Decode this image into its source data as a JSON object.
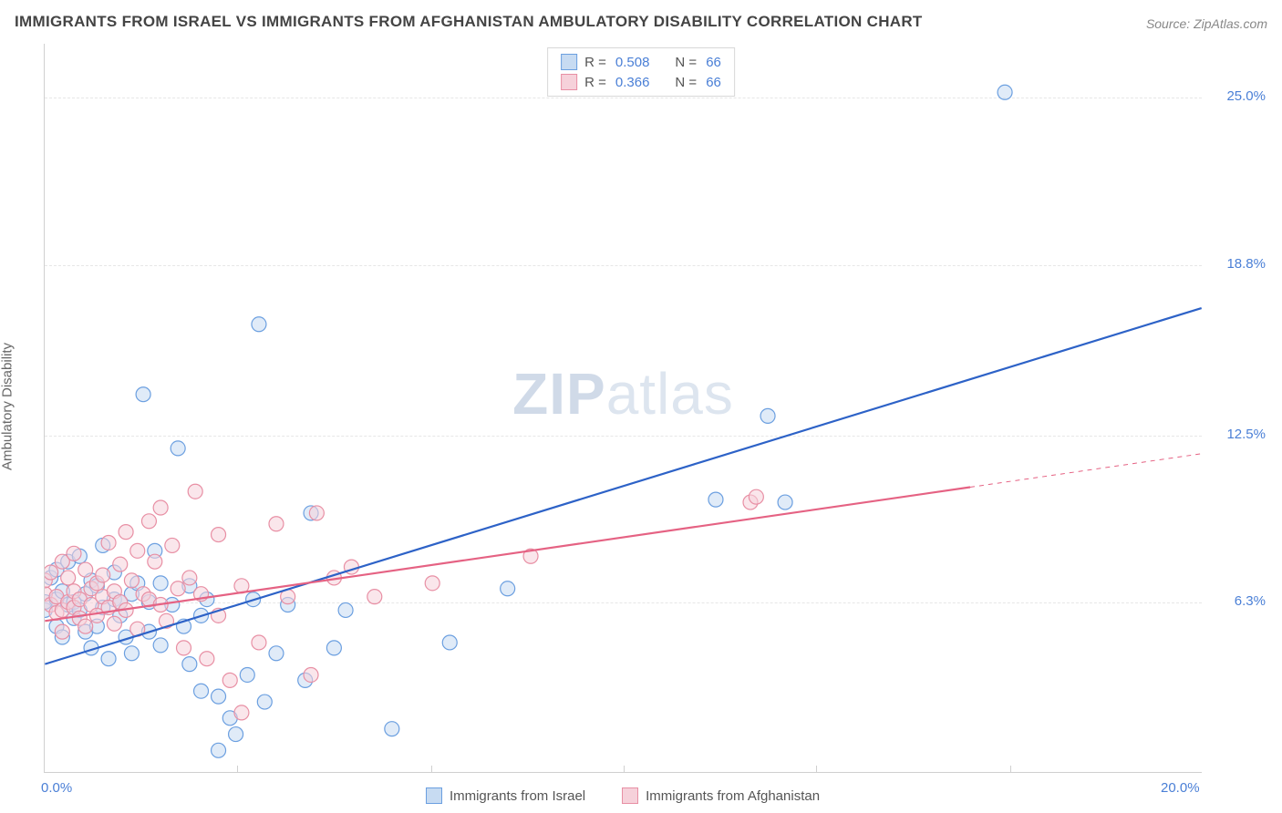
{
  "title": "IMMIGRANTS FROM ISRAEL VS IMMIGRANTS FROM AFGHANISTAN AMBULATORY DISABILITY CORRELATION CHART",
  "source": "Source: ZipAtlas.com",
  "ylabel": "Ambulatory Disability",
  "watermark": {
    "left": "ZIP",
    "right": "atlas"
  },
  "chart": {
    "type": "scatter",
    "xlim": [
      0,
      20
    ],
    "ylim": [
      0,
      27
    ],
    "xticks": [
      0,
      20
    ],
    "xtick_labels": [
      "0.0%",
      "20.0%"
    ],
    "xtick_minor": [
      3.33,
      6.67,
      10,
      13.33,
      16.67
    ],
    "yticks": [
      6.3,
      12.5,
      18.8,
      25.0
    ],
    "ytick_labels": [
      "6.3%",
      "12.5%",
      "18.8%",
      "25.0%"
    ],
    "grid_color": "#e6e6e6",
    "background_color": "#ffffff",
    "axis_color": "#d0d0d0",
    "label_color": "#4a7fd6",
    "marker_radius": 8,
    "marker_opacity": 0.55,
    "line_width": 2.2,
    "series": [
      {
        "name": "Immigrants from Israel",
        "marker_fill": "#c7dbf2",
        "marker_stroke": "#6b9fe0",
        "line_color": "#2d62c7",
        "R": 0.508,
        "N": 66,
        "trend": {
          "x1": 0,
          "y1": 4.0,
          "x2": 20,
          "y2": 17.2,
          "dash_after_x": null
        },
        "points": [
          [
            0.0,
            6.0
          ],
          [
            0.0,
            6.3
          ],
          [
            0.1,
            7.2
          ],
          [
            0.2,
            5.4
          ],
          [
            0.2,
            6.4
          ],
          [
            0.2,
            7.5
          ],
          [
            0.3,
            6.7
          ],
          [
            0.3,
            5.0
          ],
          [
            0.4,
            6.2
          ],
          [
            0.4,
            7.8
          ],
          [
            0.5,
            5.7
          ],
          [
            0.5,
            6.3
          ],
          [
            0.6,
            6.0
          ],
          [
            0.6,
            8.0
          ],
          [
            0.7,
            5.2
          ],
          [
            0.7,
            6.6
          ],
          [
            0.8,
            4.6
          ],
          [
            0.8,
            7.1
          ],
          [
            0.9,
            6.9
          ],
          [
            0.9,
            5.4
          ],
          [
            1.0,
            6.1
          ],
          [
            1.0,
            8.4
          ],
          [
            1.1,
            4.2
          ],
          [
            1.2,
            6.4
          ],
          [
            1.2,
            7.4
          ],
          [
            1.3,
            5.8
          ],
          [
            1.3,
            6.3
          ],
          [
            1.4,
            5.0
          ],
          [
            1.5,
            6.6
          ],
          [
            1.5,
            4.4
          ],
          [
            1.6,
            7.0
          ],
          [
            1.7,
            14.0
          ],
          [
            1.8,
            6.3
          ],
          [
            1.8,
            5.2
          ],
          [
            1.9,
            8.2
          ],
          [
            2.0,
            4.7
          ],
          [
            2.0,
            7.0
          ],
          [
            2.2,
            6.2
          ],
          [
            2.3,
            12.0
          ],
          [
            2.4,
            5.4
          ],
          [
            2.5,
            4.0
          ],
          [
            2.5,
            6.9
          ],
          [
            2.7,
            5.8
          ],
          [
            2.7,
            3.0
          ],
          [
            2.8,
            6.4
          ],
          [
            3.0,
            2.8
          ],
          [
            3.0,
            0.8
          ],
          [
            3.2,
            2.0
          ],
          [
            3.3,
            1.4
          ],
          [
            3.5,
            3.6
          ],
          [
            3.6,
            6.4
          ],
          [
            3.7,
            16.6
          ],
          [
            3.8,
            2.6
          ],
          [
            4.0,
            4.4
          ],
          [
            4.2,
            6.2
          ],
          [
            4.5,
            3.4
          ],
          [
            4.6,
            9.6
          ],
          [
            5.0,
            4.6
          ],
          [
            5.2,
            6.0
          ],
          [
            6.0,
            1.6
          ],
          [
            7.0,
            4.8
          ],
          [
            8.0,
            6.8
          ],
          [
            11.6,
            10.1
          ],
          [
            12.5,
            13.2
          ],
          [
            12.8,
            10.0
          ],
          [
            16.6,
            25.2
          ]
        ]
      },
      {
        "name": "Immigrants from Afghanistan",
        "marker_fill": "#f6d1da",
        "marker_stroke": "#e88fa4",
        "line_color": "#e56283",
        "R": 0.366,
        "N": 66,
        "trend": {
          "x1": 0,
          "y1": 5.6,
          "x2": 20,
          "y2": 11.8,
          "dash_after_x": 16.0
        },
        "points": [
          [
            0.0,
            6.6
          ],
          [
            0.0,
            7.1
          ],
          [
            0.1,
            6.2
          ],
          [
            0.1,
            7.4
          ],
          [
            0.2,
            5.9
          ],
          [
            0.2,
            6.5
          ],
          [
            0.3,
            6.0
          ],
          [
            0.3,
            7.8
          ],
          [
            0.3,
            5.2
          ],
          [
            0.4,
            6.3
          ],
          [
            0.4,
            7.2
          ],
          [
            0.5,
            6.1
          ],
          [
            0.5,
            6.7
          ],
          [
            0.5,
            8.1
          ],
          [
            0.6,
            5.7
          ],
          [
            0.6,
            6.4
          ],
          [
            0.7,
            7.5
          ],
          [
            0.7,
            5.4
          ],
          [
            0.8,
            6.8
          ],
          [
            0.8,
            6.2
          ],
          [
            0.9,
            7.0
          ],
          [
            0.9,
            5.8
          ],
          [
            1.0,
            6.5
          ],
          [
            1.0,
            7.3
          ],
          [
            1.1,
            6.1
          ],
          [
            1.1,
            8.5
          ],
          [
            1.2,
            5.5
          ],
          [
            1.2,
            6.7
          ],
          [
            1.3,
            7.7
          ],
          [
            1.3,
            6.3
          ],
          [
            1.4,
            8.9
          ],
          [
            1.4,
            6.0
          ],
          [
            1.5,
            7.1
          ],
          [
            1.6,
            5.3
          ],
          [
            1.6,
            8.2
          ],
          [
            1.7,
            6.6
          ],
          [
            1.8,
            9.3
          ],
          [
            1.8,
            6.4
          ],
          [
            1.9,
            7.8
          ],
          [
            2.0,
            6.2
          ],
          [
            2.0,
            9.8
          ],
          [
            2.1,
            5.6
          ],
          [
            2.2,
            8.4
          ],
          [
            2.3,
            6.8
          ],
          [
            2.4,
            4.6
          ],
          [
            2.5,
            7.2
          ],
          [
            2.6,
            10.4
          ],
          [
            2.7,
            6.6
          ],
          [
            2.8,
            4.2
          ],
          [
            3.0,
            8.8
          ],
          [
            3.0,
            5.8
          ],
          [
            3.2,
            3.4
          ],
          [
            3.4,
            6.9
          ],
          [
            3.4,
            2.2
          ],
          [
            3.7,
            4.8
          ],
          [
            4.0,
            9.2
          ],
          [
            4.2,
            6.5
          ],
          [
            4.6,
            3.6
          ],
          [
            4.7,
            9.6
          ],
          [
            5.0,
            7.2
          ],
          [
            5.3,
            7.6
          ],
          [
            5.7,
            6.5
          ],
          [
            6.7,
            7.0
          ],
          [
            8.4,
            8.0
          ],
          [
            12.2,
            10.0
          ],
          [
            12.3,
            10.2
          ]
        ]
      }
    ]
  },
  "top_legend": {
    "R_label": "R =",
    "N_label": "N ="
  },
  "bottom_legend": {
    "items": [
      "Immigrants from Israel",
      "Immigrants from Afghanistan"
    ]
  }
}
